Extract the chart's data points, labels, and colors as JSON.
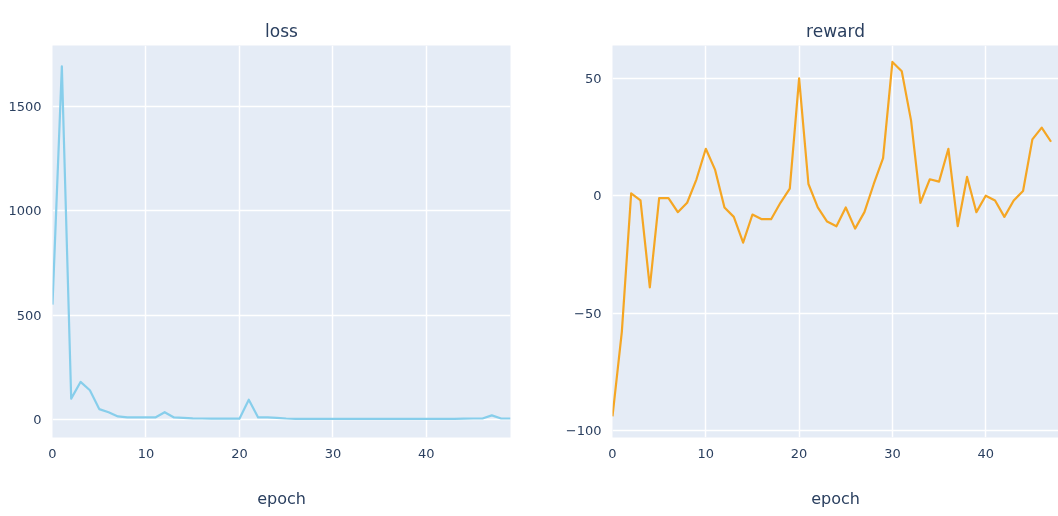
{
  "chart_data": [
    {
      "type": "line",
      "title": "loss",
      "xlabel": "epoch",
      "xlim": [
        0,
        49
      ],
      "ylim": [
        -86,
        1790
      ],
      "xticks": [
        0,
        10,
        20,
        30,
        40
      ],
      "yticks": [
        0,
        500,
        1000,
        1500
      ],
      "grid": true,
      "x": [
        0,
        1,
        2,
        3,
        4,
        5,
        6,
        7,
        8,
        9,
        10,
        11,
        12,
        13,
        14,
        15,
        16,
        17,
        18,
        19,
        20,
        21,
        22,
        23,
        24,
        25,
        26,
        27,
        28,
        29,
        30,
        31,
        32,
        33,
        34,
        35,
        36,
        37,
        38,
        39,
        40,
        41,
        42,
        43,
        44,
        45,
        46,
        47,
        48,
        49
      ],
      "series": [
        {
          "color": "#87ceeb",
          "values": [
            550,
            1690,
            100,
            180,
            140,
            50,
            35,
            15,
            10,
            10,
            10,
            10,
            35,
            10,
            8,
            6,
            5,
            4,
            4,
            4,
            4,
            95,
            10,
            10,
            8,
            5,
            3,
            3,
            3,
            3,
            3,
            3,
            3,
            3,
            3,
            3,
            3,
            3,
            3,
            3,
            3,
            3,
            3,
            3,
            4,
            5,
            5,
            20,
            5,
            5
          ]
        }
      ]
    },
    {
      "type": "line",
      "title": "reward",
      "xlabel": "epoch",
      "xlim": [
        0,
        47.8
      ],
      "ylim": [
        -103,
        64
      ],
      "xticks": [
        0,
        10,
        20,
        30,
        40
      ],
      "yticks": [
        {
          "value": -100,
          "label": "−100"
        },
        {
          "value": -50,
          "label": "−50"
        },
        0,
        50
      ],
      "grid": true,
      "x": [
        0,
        1,
        2,
        3,
        4,
        5,
        6,
        7,
        8,
        9,
        10,
        11,
        12,
        13,
        14,
        15,
        16,
        17,
        18,
        19,
        20,
        21,
        22,
        23,
        24,
        25,
        26,
        27,
        28,
        29,
        30,
        31,
        32,
        33,
        34,
        35,
        36,
        37,
        38,
        39,
        40,
        41,
        42,
        43,
        44,
        45,
        46,
        47
      ],
      "series": [
        {
          "color": "#f5a623",
          "values": [
            -94,
            -58,
            1,
            -2,
            -39,
            -1,
            -1,
            -7,
            -3,
            7,
            20,
            11,
            -5,
            -9,
            -20,
            -8,
            -10,
            -10,
            -3,
            3,
            50,
            5,
            -5,
            -11,
            -13,
            -5,
            -14,
            -7,
            5,
            16,
            57,
            53,
            32,
            -3,
            7,
            6,
            20,
            -13,
            8,
            -7,
            0,
            -2,
            -9,
            -2,
            2,
            24,
            29,
            23
          ]
        }
      ]
    }
  ]
}
